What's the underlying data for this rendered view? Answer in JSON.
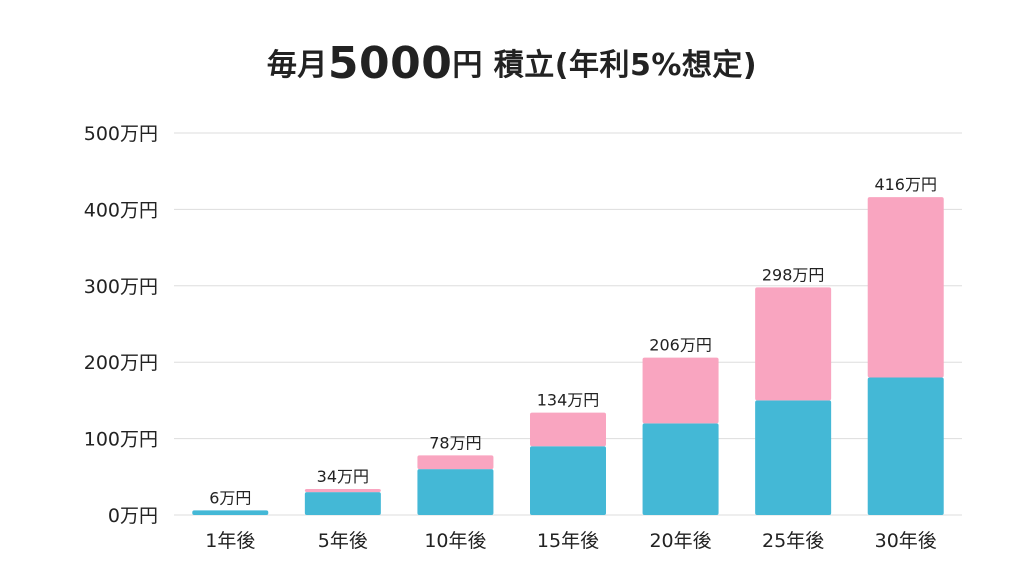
{
  "chart_data": {
    "type": "bar",
    "stacked": true,
    "title": {
      "prefix": "毎月",
      "emphasis": "5000",
      "suffix": "円 積立(年利5%想定)"
    },
    "categories": [
      "1年後",
      "5年後",
      "10年後",
      "15年後",
      "20年後",
      "25年後",
      "30年後"
    ],
    "series": [
      {
        "values": [
          6,
          30,
          60,
          90,
          120,
          150,
          180
        ],
        "color": "#44b8d6"
      },
      {
        "values": [
          0,
          4,
          18,
          44,
          86,
          148,
          236
        ],
        "color": "#f9a5c0"
      }
    ],
    "totals": [
      6,
      34,
      78,
      134,
      206,
      298,
      416
    ],
    "total_labels": [
      "6万円",
      "34万円",
      "78万円",
      "134万円",
      "206万円",
      "298万円",
      "416万円"
    ],
    "y_ticks": [
      0,
      100,
      200,
      300,
      400,
      500
    ],
    "y_tick_labels": [
      "0万円",
      "100万円",
      "200万円",
      "300万円",
      "400万円",
      "500万円"
    ],
    "ylim": [
      0,
      500
    ],
    "grid": true,
    "legend": "none"
  }
}
